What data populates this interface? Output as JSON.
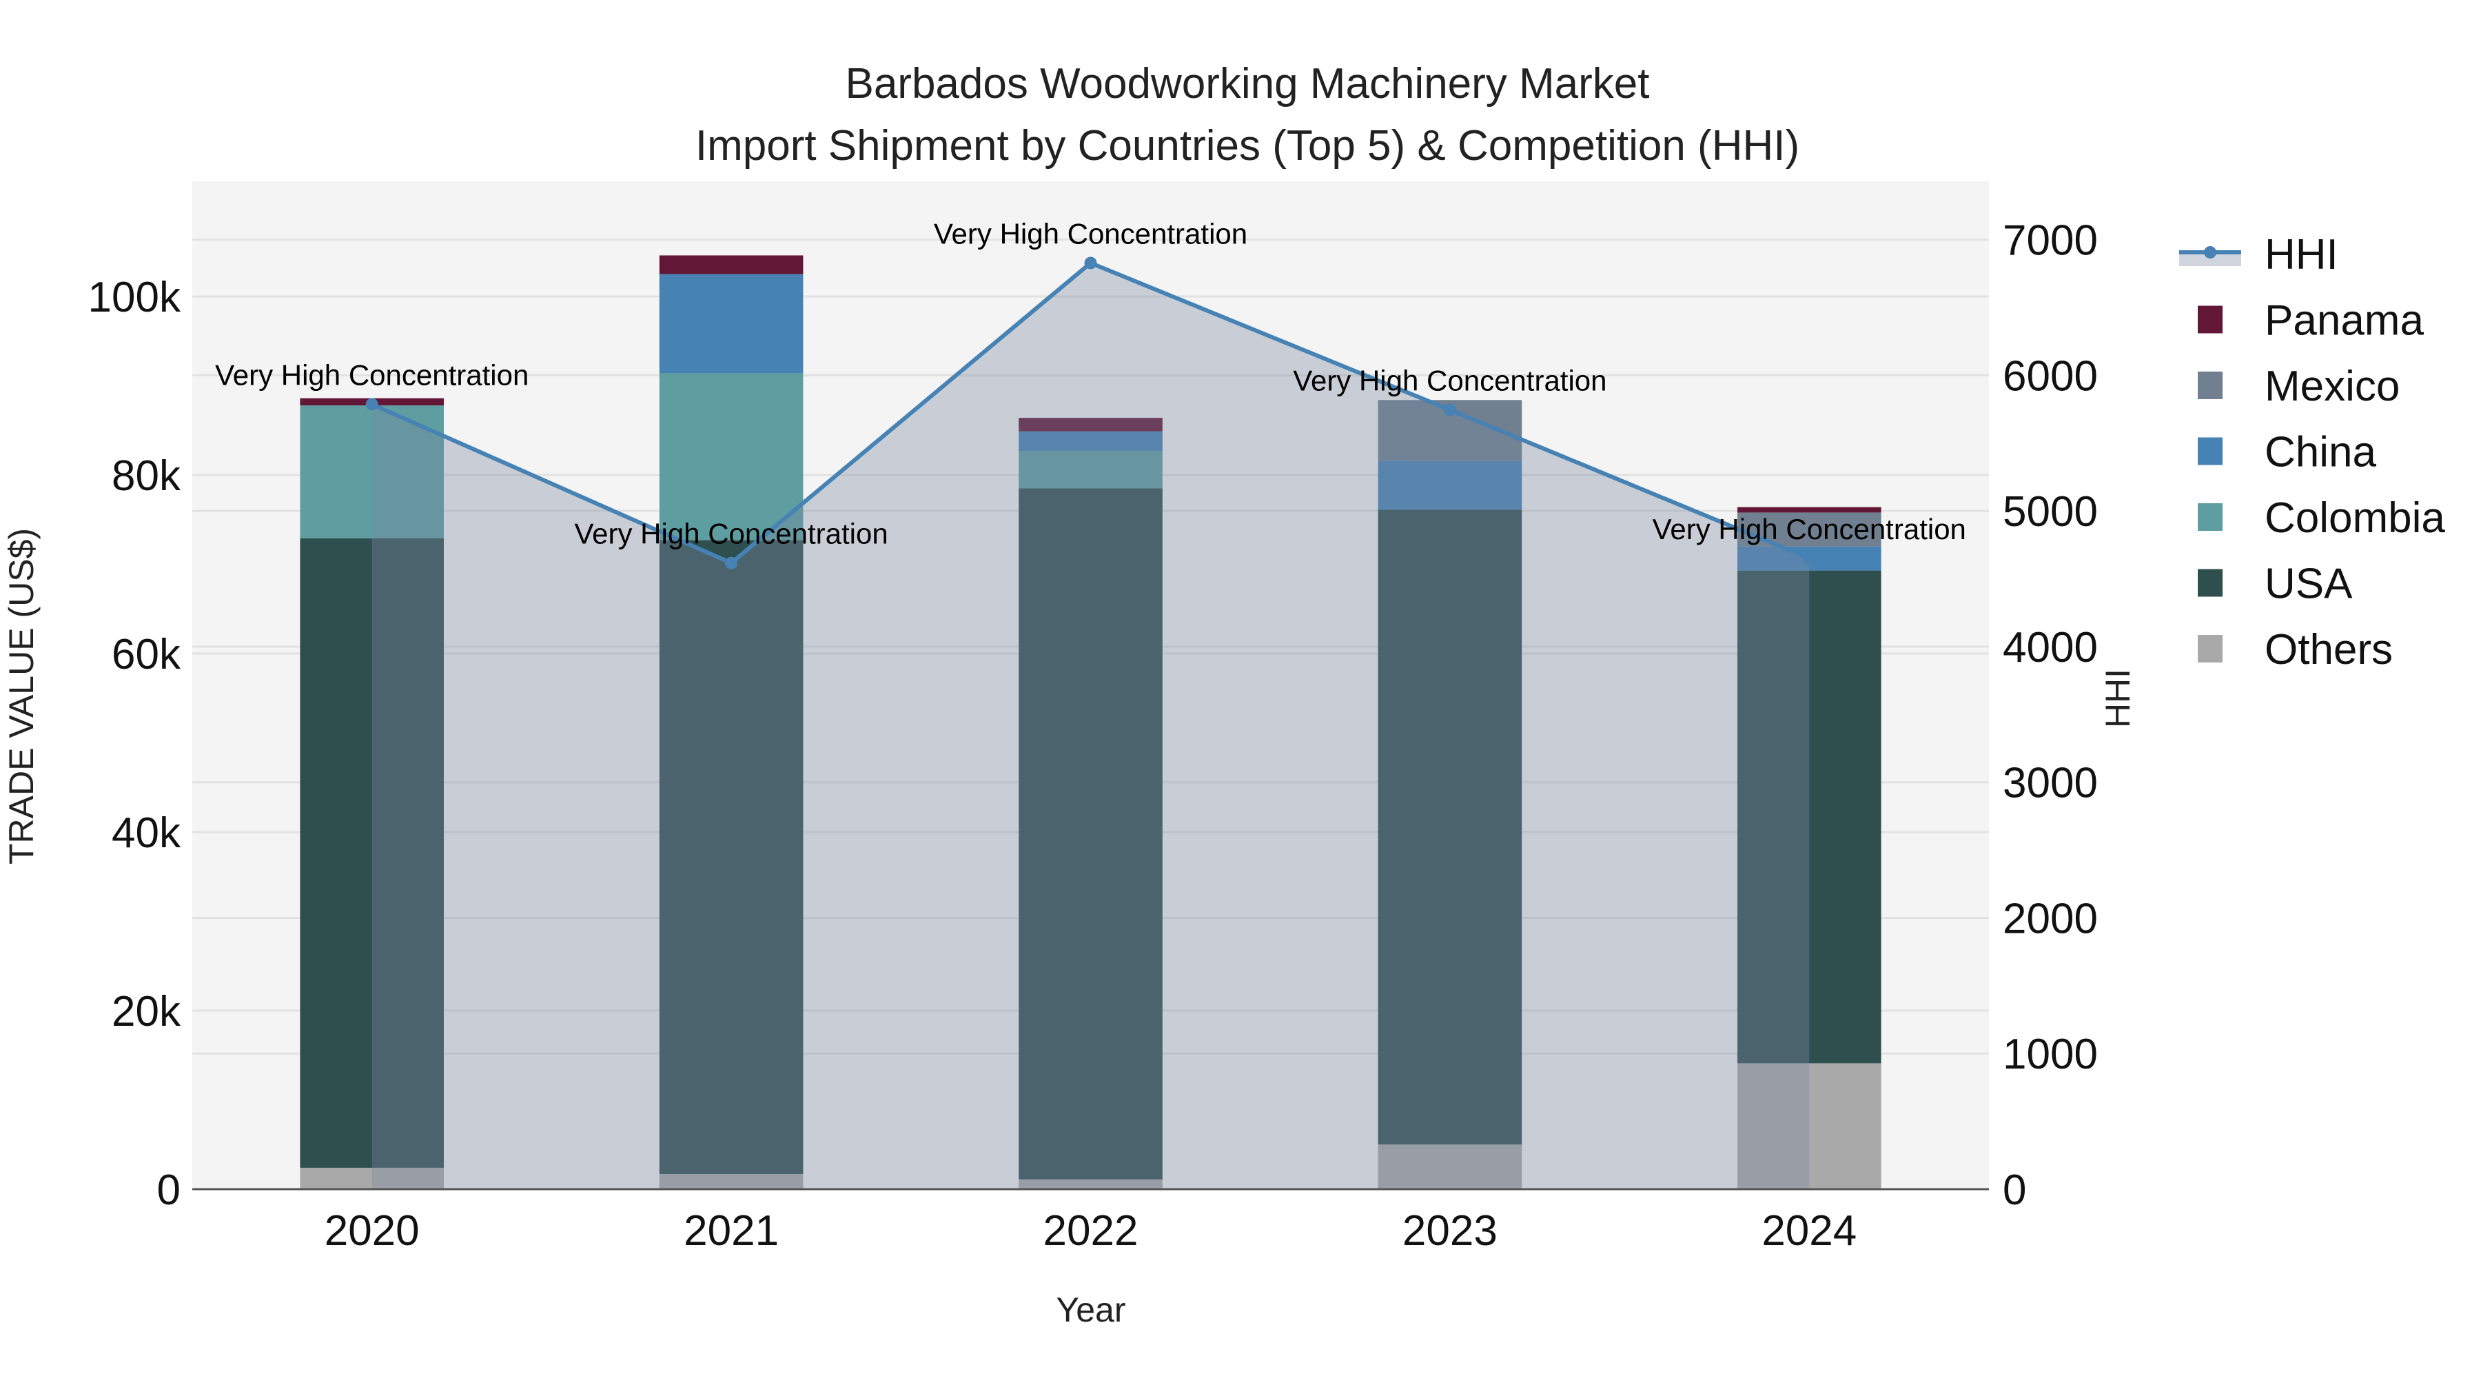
{
  "chart_data": {
    "type": "bar",
    "title": "Barbados Woodworking Machinery Market",
    "subtitle": "Import Shipment by Countries (Top 5) & Competition (HHI)",
    "xlabel": "Year",
    "ylabel": "TRADE VALUE (US$)",
    "y2label": "HHI",
    "categories": [
      "2020",
      "2021",
      "2022",
      "2023",
      "2024"
    ],
    "stack_order": [
      "Others",
      "USA",
      "Colombia",
      "China",
      "Mexico",
      "Panama"
    ],
    "series": [
      {
        "name": "Others",
        "color": "#A9A9A9",
        "values": [
          2400,
          1700,
          1100,
          5000,
          14100
        ]
      },
      {
        "name": "USA",
        "color": "#2F4F4F",
        "values": [
          70500,
          71000,
          77400,
          71100,
          55200
        ]
      },
      {
        "name": "Colombia",
        "color": "#5F9EA0",
        "values": [
          14900,
          18700,
          4200,
          0,
          0
        ]
      },
      {
        "name": "China",
        "color": "#4682B4",
        "values": [
          0,
          11100,
          2200,
          5500,
          2700
        ]
      },
      {
        "name": "Mexico",
        "color": "#708090",
        "values": [
          0,
          0,
          0,
          6800,
          3800
        ]
      },
      {
        "name": "Panama",
        "color": "#611735",
        "values": [
          800,
          2100,
          1500,
          0,
          600
        ]
      }
    ],
    "line_series": {
      "name": "HHI",
      "axis": "right",
      "color": "#4682B4",
      "fill": "rgba(122,136,161,0.36)",
      "values": [
        5786,
        4616,
        6828,
        5745,
        4650
      ],
      "annotations": [
        "Very High Concentration",
        "Very High Concentration",
        "Very High Concentration",
        "Very High Concentration",
        "Very High Concentration"
      ]
    },
    "ylim": [
      0,
      112900
    ],
    "y2lim": [
      0,
      7430
    ],
    "yticks": [
      0,
      20000,
      40000,
      60000,
      80000,
      100000
    ],
    "ytick_labels": [
      "0",
      "20k",
      "40k",
      "60k",
      "80k",
      "100k"
    ],
    "y2ticks": [
      0,
      1000,
      2000,
      3000,
      4000,
      5000,
      6000,
      7000
    ],
    "y2tick_labels": [
      "0",
      "1000",
      "2000",
      "3000",
      "4000",
      "5000",
      "6000",
      "7000"
    ],
    "grid": true,
    "legend_position": "right",
    "legend": [
      "HHI",
      "Panama",
      "Mexico",
      "China",
      "Colombia",
      "USA",
      "Others"
    ]
  },
  "colors": {
    "plot_bg": "#F4F4F4",
    "grid": "#E2E2E2",
    "axis_line": "#555555"
  }
}
